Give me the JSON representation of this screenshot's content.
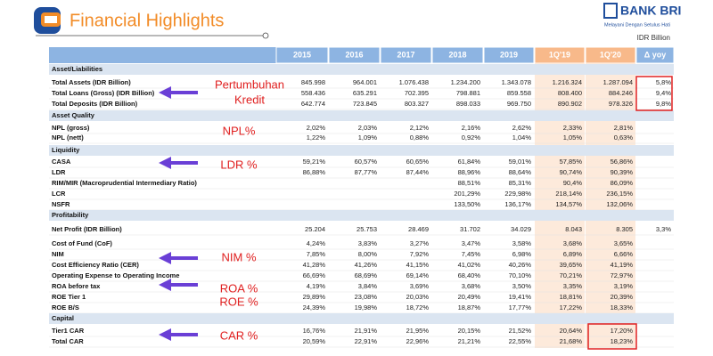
{
  "header": {
    "title": "Financial Highlights",
    "logo": "BANK BRI",
    "tagline": "Melayani Dengan Setulus Hati",
    "unit": "IDR Billion"
  },
  "table": {
    "columns": [
      "2015",
      "2016",
      "2017",
      "2018",
      "2019",
      "1Q'19",
      "1Q'20",
      "Δ yoy"
    ],
    "sections": [
      {
        "title": "Asset/Liabilities",
        "rows": [
          {
            "label": "Total Assets (IDR Billion)",
            "cells": [
              "845.998",
              "964.001",
              "1.076.438",
              "1.234.200",
              "1.343.078",
              "1.216.324",
              "1.287.094",
              "5,8%"
            ]
          },
          {
            "label": "Total Loans (Gross) (IDR Billion)",
            "cells": [
              "558.436",
              "635.291",
              "702.395",
              "798.881",
              "859.558",
              "808.400",
              "884.246",
              "9,4%"
            ]
          },
          {
            "label": "Total Deposits (IDR Billion)",
            "cells": [
              "642.774",
              "723.845",
              "803.327",
              "898.033",
              "969.750",
              "890.902",
              "978.326",
              "9,8%"
            ]
          }
        ]
      },
      {
        "title": "Asset Quality",
        "rows": [
          {
            "label": "NPL (gross)",
            "cells": [
              "2,02%",
              "2,03%",
              "2,12%",
              "2,16%",
              "2,62%",
              "2,33%",
              "2,81%",
              null
            ]
          },
          {
            "label": "NPL (nett)",
            "cells": [
              "1,22%",
              "1,09%",
              "0,88%",
              "0,92%",
              "1,04%",
              "1,05%",
              "0,63%",
              null
            ]
          }
        ]
      },
      {
        "title": "Liquidity",
        "rows": [
          {
            "label": "CASA",
            "cells": [
              "59,21%",
              "60,57%",
              "60,65%",
              "61,84%",
              "59,01%",
              "57,85%",
              "56,86%",
              null
            ]
          },
          {
            "label": "LDR",
            "cells": [
              "86,88%",
              "87,77%",
              "87,44%",
              "88,96%",
              "88,64%",
              "90,74%",
              "90,39%",
              null
            ]
          },
          {
            "label": "RIM/MIR (Macroprudential Intermediary Ratio)",
            "cells": [
              null,
              null,
              null,
              "88,51%",
              "85,31%",
              "90,4%",
              "86,09%",
              null
            ]
          },
          {
            "label": "LCR",
            "cells": [
              null,
              null,
              null,
              "201,29%",
              "229,98%",
              "218,14%",
              "236,15%",
              null
            ]
          },
          {
            "label": "NSFR",
            "cells": [
              null,
              null,
              null,
              "133,50%",
              "136,17%",
              "134,57%",
              "132,06%",
              null
            ]
          }
        ]
      },
      {
        "title": "Profitability",
        "rows": [
          {
            "label": "Net Profit (IDR Billion)",
            "cells": [
              "25.204",
              "25.753",
              "28.469",
              "31.702",
              "34.029",
              "8.043",
              "8.305",
              "3,3%"
            ]
          },
          {
            "label": "Cost of Fund (CoF)",
            "cells": [
              "4,24%",
              "3,83%",
              "3,27%",
              "3,47%",
              "3,58%",
              "3,68%",
              "3,65%",
              null
            ]
          },
          {
            "label": "NIM",
            "cells": [
              "7,85%",
              "8,00%",
              "7,92%",
              "7,45%",
              "6,98%",
              "6,89%",
              "6,66%",
              null
            ]
          },
          {
            "label": "Cost Efficiency Ratio (CER)",
            "cells": [
              "41,28%",
              "41,26%",
              "41,15%",
              "41,02%",
              "40,26%",
              "39,65%",
              "41,19%",
              null
            ]
          },
          {
            "label": "Operating Expense to Operating Income",
            "cells": [
              "66,69%",
              "68,69%",
              "69,14%",
              "68,40%",
              "70,10%",
              "70,21%",
              "72,97%",
              null
            ]
          },
          {
            "label": "ROA before tax",
            "cells": [
              "4,19%",
              "3,84%",
              "3,69%",
              "3,68%",
              "3,50%",
              "3,35%",
              "3,19%",
              null
            ]
          },
          {
            "label": "ROE Tier 1",
            "cells": [
              "29,89%",
              "23,08%",
              "20,03%",
              "20,49%",
              "19,41%",
              "18,81%",
              "20,39%",
              null
            ]
          },
          {
            "label": "ROE B/S",
            "cells": [
              "24,39%",
              "19,98%",
              "18,72%",
              "18,87%",
              "17,77%",
              "17,22%",
              "18,33%",
              null
            ]
          }
        ]
      },
      {
        "title": "Capital",
        "rows": [
          {
            "label": "Tier1 CAR",
            "cells": [
              "16,76%",
              "21,91%",
              "21,95%",
              "20,15%",
              "21,52%",
              "20,64%",
              "17,20%",
              null
            ]
          },
          {
            "label": "Total CAR",
            "cells": [
              "20,59%",
              "22,91%",
              "22,96%",
              "21,21%",
              "22,55%",
              "21,68%",
              "18,23%",
              null
            ]
          }
        ]
      }
    ]
  },
  "annotations": [
    [
      "Pertumbuhan",
      "Kredit"
    ],
    [
      "NPL%"
    ],
    [
      "LDR %"
    ],
    [
      "NIM %"
    ],
    [
      "ROA %"
    ],
    [
      "ROE %"
    ],
    [
      "CAR %"
    ]
  ]
}
